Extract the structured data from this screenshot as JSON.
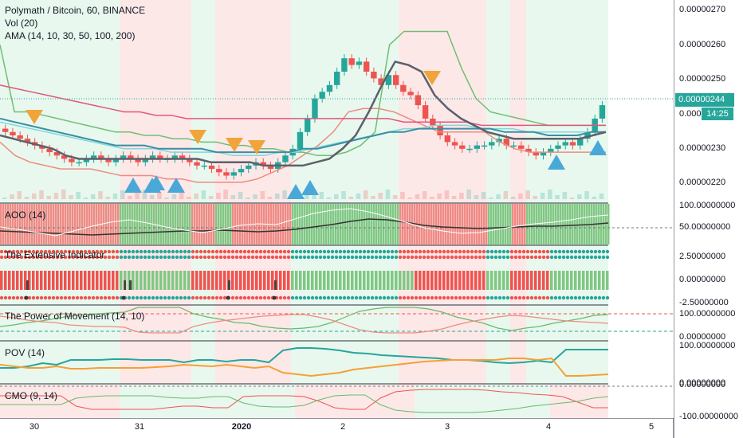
{
  "chart": {
    "symbol_title": "Polymath / Bitcoin, 60, BINANCE",
    "indicator_lines": [
      "Vol (20)",
      "AMA (14, 10, 30, 50, 100, 200)"
    ],
    "last_price": "0.00000244",
    "countdown": "14:25",
    "colors": {
      "up": "#26a69a",
      "down": "#ef5350",
      "bg_green": "#e8f8ee",
      "bg_red": "#fde8e8",
      "ama_dark": "#5d606b",
      "ama_teal": "#3b8ea5",
      "ama_red": "#e0567c",
      "ama_cyan": "#7fd8d8",
      "ama_green": "#6fbf73",
      "ama_salmon": "#ef8a80",
      "marker_orange": "#f0a43a",
      "marker_blue": "#4aa8d8"
    }
  },
  "chart_data": {
    "type": "line",
    "title": "Polymath / Bitcoin, 60, BINANCE",
    "price_axis": {
      "ticks": [
        "0.00000270",
        "0.00000260",
        "0.00000250",
        "0.00000240",
        "0.00000230",
        "0.00000220"
      ],
      "ylim": [
        2.16e-06,
        2.73e-06
      ]
    },
    "x_ticks": [
      "30",
      "31",
      "2020",
      "2",
      "3",
      "4",
      "5"
    ],
    "price_series": [
      236,
      235,
      234,
      233,
      232,
      231,
      230,
      229,
      228,
      227,
      227,
      228,
      229,
      228,
      227,
      228,
      229,
      228,
      227,
      228,
      229,
      228,
      228,
      229,
      228,
      227,
      226,
      226,
      225,
      224,
      223,
      224,
      225,
      226,
      227,
      226,
      225,
      227,
      229,
      231,
      236,
      240,
      246,
      248,
      250,
      254,
      258,
      256,
      257,
      254,
      252,
      250,
      253,
      250,
      248,
      247,
      244,
      240,
      238,
      235,
      233,
      232,
      231,
      231,
      232,
      232,
      233,
      234,
      232,
      232,
      231,
      230,
      229,
      230,
      231,
      232,
      233,
      232,
      234,
      236,
      240,
      244
    ],
    "ama_lines": {
      "dark": [
        235,
        234,
        233,
        232,
        231,
        229,
        228,
        228,
        228,
        228,
        228,
        228,
        228,
        228,
        228,
        228,
        227,
        227,
        227,
        227,
        226,
        226,
        226,
        226,
        227,
        228,
        231,
        235,
        242,
        250,
        257,
        256,
        254,
        247,
        243,
        240,
        238,
        236,
        235,
        234,
        234,
        234,
        234,
        234,
        234,
        235,
        236
      ],
      "teal": [
        240,
        239,
        238,
        237,
        236,
        235,
        234,
        233,
        232,
        232,
        232,
        231,
        231,
        231,
        231,
        230,
        230,
        230,
        230,
        230,
        230,
        231,
        231,
        232,
        233,
        234,
        235,
        236,
        236,
        237,
        237,
        237,
        237,
        237,
        237,
        236,
        236,
        236,
        235,
        235,
        235,
        236,
        236
      ],
      "red": [
        250,
        249,
        248,
        247,
        246,
        245,
        244,
        243,
        242,
        242,
        241,
        241,
        240,
        240,
        240,
        240,
        240,
        240,
        240,
        240,
        240,
        240,
        240,
        240,
        240,
        240,
        239,
        239,
        239,
        239,
        239,
        238,
        238,
        238,
        238,
        238,
        238,
        238,
        238,
        238
      ],
      "cyan": [
        239,
        238,
        237,
        236,
        235,
        234,
        233,
        232,
        231,
        231,
        231,
        230,
        230,
        230,
        230,
        229,
        229,
        229,
        230,
        230,
        231,
        232,
        233,
        234,
        235,
        236,
        237,
        237,
        238,
        238,
        238,
        237,
        237,
        237,
        236,
        236,
        236,
        236,
        236,
        236
      ],
      "green": [
        262,
        242,
        242,
        241,
        240,
        239,
        238,
        237,
        236,
        236,
        235,
        235,
        234,
        234,
        233,
        233,
        232,
        232,
        231,
        231,
        230,
        230,
        229,
        229,
        230,
        232,
        236,
        262,
        266,
        266,
        266,
        266,
        255,
        246,
        242,
        241,
        240,
        239,
        238,
        238,
        238,
        238,
        238
      ],
      "salmon": [
        233,
        229,
        227,
        226,
        225,
        225,
        225,
        224,
        223,
        223,
        223,
        222,
        222,
        221,
        221,
        221,
        221,
        222,
        224,
        226,
        229,
        232,
        236,
        242,
        243,
        243,
        242,
        240,
        238,
        236,
        236,
        236,
        236,
        233,
        231,
        230,
        230,
        230,
        230,
        230,
        230
      ]
    },
    "sell_markers": 6,
    "buy_markers": 10,
    "panels": [
      {
        "name": "AOO (14)",
        "ticks": [
          "100.00000000",
          "50.00000000"
        ]
      },
      {
        "name": "The Extensive Indicator",
        "ticks": [
          "2.50000000",
          "0.00000000",
          "-2.50000000"
        ]
      },
      {
        "name": "The Power of Movement (14, 10)",
        "ticks": [
          "100.00000000",
          "0.00000000"
        ]
      },
      {
        "name": "POV (14)",
        "ticks": [
          "100.00000000",
          "0.00000000"
        ]
      },
      {
        "name": "CMO (9, 14)",
        "ticks": [
          "0.00000000",
          "-100.00000000"
        ]
      }
    ]
  }
}
